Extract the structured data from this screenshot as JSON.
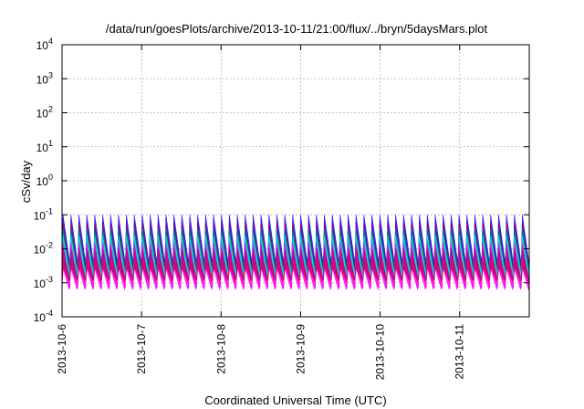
{
  "chart_data": {
    "type": "area",
    "title": "/data/run/goesPlots/archive/2013-10-11/21:00/flux/../bryn/5daysMars.plot",
    "xlabel": "Coordinated Universal Time (UTC)",
    "ylabel": "cSv/day",
    "yscale": "log",
    "ylim": [
      0.0001,
      10000
    ],
    "y_ticks": [
      {
        "base": "10",
        "exp": "-4",
        "value": 0.0001
      },
      {
        "base": "10",
        "exp": "-3",
        "value": 0.001
      },
      {
        "base": "10",
        "exp": "-2",
        "value": 0.01
      },
      {
        "base": "10",
        "exp": "-1",
        "value": 0.1
      },
      {
        "base": "10",
        "exp": "0",
        "value": 1
      },
      {
        "base": "10",
        "exp": "1",
        "value": 10
      },
      {
        "base": "10",
        "exp": "2",
        "value": 100
      },
      {
        "base": "10",
        "exp": "3",
        "value": 1000
      },
      {
        "base": "10",
        "exp": "4",
        "value": 10000
      }
    ],
    "x_range": [
      "2013-10-06",
      "2013-10-11T21:00"
    ],
    "x_ticks": [
      "2013-10-6",
      "2013-10-7",
      "2013-10-8",
      "2013-10-9",
      "2013-10-10",
      "2013-10-11"
    ],
    "grid": true,
    "cycles_per_day": 10,
    "bands": [
      {
        "color": "#1a1aff",
        "low": 0.0035,
        "high": 0.1
      },
      {
        "color": "#800080",
        "low": 0.0025,
        "high": 0.06
      },
      {
        "color": "#008080",
        "low": 0.002,
        "high": 0.04
      },
      {
        "color": "#00e6e6",
        "low": 0.0016,
        "high": 0.025
      },
      {
        "color": "#ff00ff",
        "low": 0.0007,
        "high": 0.015
      },
      {
        "color": "#cc0066",
        "low": 0.0012,
        "high": 0.01
      }
    ]
  }
}
